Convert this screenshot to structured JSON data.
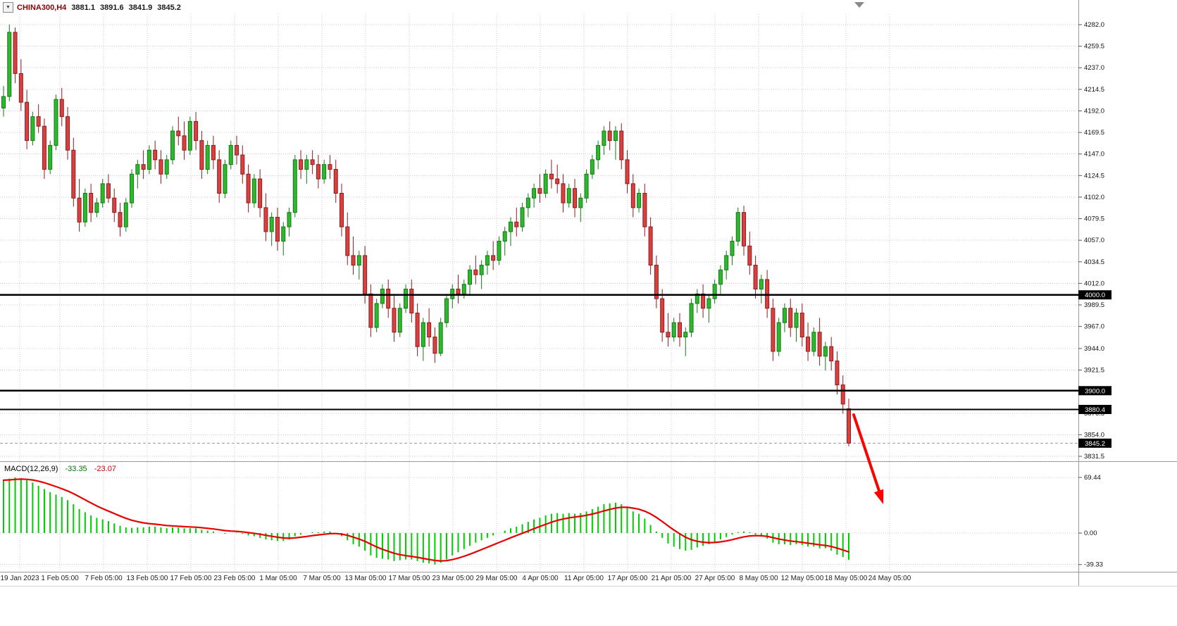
{
  "header": {
    "symbol_timeframe": "CHINA300,H4",
    "open": "3881.1",
    "high": "3891.6",
    "low": "3841.9",
    "close": "3845.2",
    "dropdown_icon": "▼"
  },
  "macd_label": {
    "name": "MACD(12,26,9)",
    "macd_value": "-33.35",
    "signal_value": "-23.07"
  },
  "colors": {
    "bull_fill": "#2db82d",
    "bull_border": "#157a15",
    "bear_fill": "#d94040",
    "bear_border": "#8e1c1c",
    "histogram": "#00cc00",
    "signal": "#e60000",
    "grid": "#c9c9d6",
    "level_line": "#000000",
    "last_price_line": "#9a9a9a",
    "separator": "#9a9a9a",
    "tag_bg": "#000000",
    "tag_text": "#ffffff",
    "axis_text": "#111111",
    "x_label_text": "#222222",
    "arrow": "#ff0000",
    "shift_marker": "#888888"
  },
  "chart_data": {
    "type": "candlestick",
    "title": "CHINA300,H4",
    "symbol": "CHINA300",
    "timeframe": "H4",
    "grid": true,
    "y_axis": {
      "ylim": [
        3831.5,
        4293
      ],
      "ticks": [
        "4282.0",
        "4259.5",
        "4237.0",
        "4214.5",
        "4192.0",
        "4169.5",
        "4147.0",
        "4124.5",
        "4102.0",
        "4079.5",
        "4057.0",
        "4034.5",
        "4012.0",
        "3989.5",
        "3967.0",
        "3944.0",
        "3921.5",
        "3876.5",
        "3854.0",
        "3831.5"
      ],
      "macd_ticks": [
        "69.44",
        "0.00",
        "-39.33"
      ]
    },
    "x_axis": {
      "labels": [
        "19 Jan 2023",
        "1 Feb 05:00",
        "7 Feb 05:00",
        "13 Feb 05:00",
        "17 Feb 05:00",
        "23 Feb 05:00",
        "1 Mar 05:00",
        "7 Mar 05:00",
        "13 Mar 05:00",
        "17 Mar 05:00",
        "23 Mar 05:00",
        "29 Mar 05:00",
        "4 Apr 05:00",
        "11 Apr 05:00",
        "17 Apr 05:00",
        "21 Apr 05:00",
        "27 Apr 05:00",
        "8 May 05:00",
        "12 May 05:00",
        "18 May 05:00",
        "24 May 05:00"
      ]
    },
    "horizontal_lines": [
      {
        "price": 4000.0,
        "label": "4000.0"
      },
      {
        "price": 3900.0,
        "label": "3900.0"
      },
      {
        "price": 3880.4,
        "label": "3880.4"
      }
    ],
    "current_price": {
      "price": 3845.2,
      "label": "3845.2"
    },
    "annotations": [
      {
        "type": "arrow",
        "direction": "down-right",
        "color": "#ff0000"
      }
    ],
    "candles": [
      [
        4195,
        4218,
        4186,
        4207
      ],
      [
        4207,
        4282,
        4202,
        4274
      ],
      [
        4274,
        4279,
        4221,
        4231
      ],
      [
        4231,
        4246,
        4192,
        4201
      ],
      [
        4201,
        4214,
        4152,
        4161
      ],
      [
        4161,
        4191,
        4156,
        4186
      ],
      [
        4186,
        4199,
        4169,
        4176
      ],
      [
        4176,
        4184,
        4121,
        4131
      ],
      [
        4131,
        4161,
        4126,
        4156
      ],
      [
        4156,
        4209,
        4151,
        4204
      ],
      [
        4204,
        4216,
        4176,
        4186
      ],
      [
        4186,
        4196,
        4141,
        4151
      ],
      [
        4151,
        4164,
        4092,
        4101
      ],
      [
        4101,
        4121,
        4066,
        4076
      ],
      [
        4076,
        4111,
        4071,
        4106
      ],
      [
        4106,
        4116,
        4076,
        4086
      ],
      [
        4086,
        4101,
        4081,
        4096
      ],
      [
        4096,
        4121,
        4091,
        4116
      ],
      [
        4116,
        4126,
        4096,
        4101
      ],
      [
        4101,
        4111,
        4076,
        4086
      ],
      [
        4086,
        4096,
        4061,
        4071
      ],
      [
        4071,
        4101,
        4066,
        4096
      ],
      [
        4096,
        4131,
        4091,
        4126
      ],
      [
        4126,
        4141,
        4111,
        4136
      ],
      [
        4136,
        4151,
        4121,
        4131
      ],
      [
        4131,
        4156,
        4126,
        4151
      ],
      [
        4151,
        4161,
        4131,
        4141
      ],
      [
        4141,
        4151,
        4116,
        4126
      ],
      [
        4126,
        4146,
        4121,
        4141
      ],
      [
        4141,
        4176,
        4136,
        4171
      ],
      [
        4171,
        4186,
        4156,
        4166
      ],
      [
        4166,
        4181,
        4141,
        4151
      ],
      [
        4151,
        4186,
        4146,
        4181
      ],
      [
        4181,
        4191,
        4151,
        4161
      ],
      [
        4161,
        4171,
        4121,
        4131
      ],
      [
        4131,
        4161,
        4126,
        4156
      ],
      [
        4156,
        4166,
        4131,
        4141
      ],
      [
        4141,
        4151,
        4096,
        4106
      ],
      [
        4106,
        4141,
        4101,
        4136
      ],
      [
        4136,
        4161,
        4131,
        4156
      ],
      [
        4156,
        4166,
        4136,
        4146
      ],
      [
        4146,
        4156,
        4116,
        4126
      ],
      [
        4126,
        4136,
        4086,
        4096
      ],
      [
        4096,
        4126,
        4091,
        4121
      ],
      [
        4121,
        4131,
        4081,
        4091
      ],
      [
        4091,
        4106,
        4056,
        4066
      ],
      [
        4066,
        4086,
        4051,
        4081
      ],
      [
        4081,
        4091,
        4046,
        4056
      ],
      [
        4056,
        4076,
        4041,
        4071
      ],
      [
        4071,
        4091,
        4061,
        4086
      ],
      [
        4086,
        4146,
        4081,
        4141
      ],
      [
        4141,
        4151,
        4121,
        4131
      ],
      [
        4131,
        4146,
        4116,
        4141
      ],
      [
        4141,
        4151,
        4126,
        4136
      ],
      [
        4136,
        4146,
        4111,
        4121
      ],
      [
        4121,
        4141,
        4116,
        4136
      ],
      [
        4136,
        4146,
        4121,
        4131
      ],
      [
        4131,
        4141,
        4096,
        4106
      ],
      [
        4106,
        4116,
        4061,
        4071
      ],
      [
        4071,
        4086,
        4031,
        4041
      ],
      [
        4041,
        4061,
        4021,
        4031
      ],
      [
        4031,
        4046,
        4016,
        4041
      ],
      [
        4041,
        4051,
        3991,
        4001
      ],
      [
        4001,
        4011,
        3956,
        3966
      ],
      [
        3966,
        3996,
        3961,
        3991
      ],
      [
        3991,
        4011,
        3986,
        4006
      ],
      [
        4006,
        4016,
        3976,
        3986
      ],
      [
        3986,
        4001,
        3951,
        3961
      ],
      [
        3961,
        3991,
        3956,
        3986
      ],
      [
        3986,
        4011,
        3981,
        4006
      ],
      [
        4006,
        4016,
        3971,
        3981
      ],
      [
        3981,
        3991,
        3936,
        3946
      ],
      [
        3946,
        3976,
        3931,
        3971
      ],
      [
        3971,
        3986,
        3946,
        3956
      ],
      [
        3956,
        3966,
        3929,
        3939
      ],
      [
        3939,
        3976,
        3936,
        3971
      ],
      [
        3971,
        4001,
        3966,
        3996
      ],
      [
        3996,
        4011,
        3986,
        4006
      ],
      [
        4006,
        4021,
        3991,
        4001
      ],
      [
        4001,
        4016,
        3996,
        4011
      ],
      [
        4011,
        4031,
        4001,
        4026
      ],
      [
        4026,
        4041,
        4011,
        4021
      ],
      [
        4021,
        4036,
        4006,
        4031
      ],
      [
        4031,
        4046,
        4021,
        4041
      ],
      [
        4041,
        4056,
        4026,
        4036
      ],
      [
        4036,
        4061,
        4031,
        4056
      ],
      [
        4056,
        4071,
        4041,
        4066
      ],
      [
        4066,
        4081,
        4051,
        4076
      ],
      [
        4076,
        4091,
        4061,
        4071
      ],
      [
        4071,
        4096,
        4066,
        4091
      ],
      [
        4091,
        4106,
        4081,
        4101
      ],
      [
        4101,
        4116,
        4091,
        4111
      ],
      [
        4111,
        4126,
        4096,
        4106
      ],
      [
        4106,
        4131,
        4101,
        4126
      ],
      [
        4126,
        4141,
        4111,
        4121
      ],
      [
        4121,
        4136,
        4106,
        4116
      ],
      [
        4116,
        4126,
        4086,
        4096
      ],
      [
        4096,
        4116,
        4091,
        4111
      ],
      [
        4111,
        4121,
        4081,
        4091
      ],
      [
        4091,
        4106,
        4076,
        4101
      ],
      [
        4101,
        4131,
        4096,
        4126
      ],
      [
        4126,
        4146,
        4121,
        4141
      ],
      [
        4141,
        4161,
        4131,
        4156
      ],
      [
        4156,
        4176,
        4146,
        4171
      ],
      [
        4171,
        4181,
        4151,
        4161
      ],
      [
        4161,
        4176,
        4141,
        4171
      ],
      [
        4171,
        4179,
        4131,
        4141
      ],
      [
        4141,
        4151,
        4106,
        4116
      ],
      [
        4116,
        4126,
        4081,
        4091
      ],
      [
        4091,
        4111,
        4086,
        4106
      ],
      [
        4106,
        4116,
        4061,
        4071
      ],
      [
        4071,
        4081,
        4021,
        4031
      ],
      [
        4031,
        4041,
        3986,
        3996
      ],
      [
        3996,
        4006,
        3951,
        3961
      ],
      [
        3961,
        3981,
        3946,
        3956
      ],
      [
        3956,
        3976,
        3951,
        3971
      ],
      [
        3971,
        3981,
        3946,
        3956
      ],
      [
        3956,
        3966,
        3936,
        3961
      ],
      [
        3961,
        3996,
        3956,
        3991
      ],
      [
        3991,
        4006,
        3981,
        4001
      ],
      [
        4001,
        4011,
        3976,
        3986
      ],
      [
        3986,
        4001,
        3971,
        3996
      ],
      [
        3996,
        4016,
        3991,
        4011
      ],
      [
        4011,
        4031,
        4001,
        4026
      ],
      [
        4026,
        4046,
        4016,
        4041
      ],
      [
        4041,
        4061,
        4031,
        4056
      ],
      [
        4056,
        4091,
        4051,
        4086
      ],
      [
        4086,
        4093,
        4041,
        4051
      ],
      [
        4051,
        4066,
        4021,
        4031
      ],
      [
        4031,
        4041,
        3996,
        4006
      ],
      [
        4006,
        4021,
        3991,
        4016
      ],
      [
        4016,
        4026,
        3976,
        3986
      ],
      [
        3986,
        3996,
        3931,
        3941
      ],
      [
        3941,
        3976,
        3936,
        3971
      ],
      [
        3971,
        3991,
        3961,
        3986
      ],
      [
        3986,
        3996,
        3956,
        3966
      ],
      [
        3966,
        3986,
        3951,
        3981
      ],
      [
        3981,
        3991,
        3946,
        3956
      ],
      [
        3956,
        3971,
        3931,
        3941
      ],
      [
        3941,
        3966,
        3936,
        3961
      ],
      [
        3961,
        3976,
        3926,
        3936
      ],
      [
        3936,
        3951,
        3921,
        3946
      ],
      [
        3946,
        3956,
        3921,
        3931
      ],
      [
        3931,
        3941,
        3896,
        3906
      ],
      [
        3906,
        3916,
        3876,
        3886
      ],
      [
        3881.1,
        3891.6,
        3841.9,
        3845.2
      ]
    ],
    "macd": {
      "label": "MACD(12,26,9)",
      "macd_line_value": -33.35,
      "signal_value": -23.07,
      "signal_period": 9,
      "ylim": [
        -48,
        85
      ],
      "histogram": [
        66,
        68,
        69.44,
        68.5,
        66,
        63,
        59,
        55,
        51,
        48,
        45,
        41,
        36,
        30,
        26,
        22,
        19,
        17,
        15,
        12,
        9,
        7,
        6.5,
        7,
        7,
        8,
        8,
        7,
        6,
        7,
        7,
        6,
        6,
        6,
        4,
        3,
        2,
        0,
        -1,
        0,
        0.5,
        -1,
        -3,
        -4,
        -6,
        -8,
        -9,
        -10,
        -10,
        -8,
        -4,
        -2,
        0,
        1,
        1,
        2,
        2,
        0,
        -4,
        -9,
        -14,
        -17,
        -22,
        -28,
        -31,
        -32,
        -33,
        -35,
        -34,
        -33,
        -33,
        -35,
        -37,
        -38,
        -39.33,
        -37,
        -33,
        -28,
        -24,
        -20,
        -16,
        -12,
        -9,
        -6,
        -3,
        0,
        3,
        6,
        8,
        11,
        14,
        17,
        19,
        22,
        24,
        25,
        24,
        25,
        24,
        25,
        27,
        30,
        33,
        36,
        37,
        38,
        36,
        32,
        27,
        24,
        18,
        10,
        2,
        -6,
        -13,
        -17,
        -20,
        -22,
        -21,
        -18,
        -16,
        -14,
        -11,
        -8,
        -5,
        -2,
        1,
        2,
        1,
        -2,
        -4,
        -7,
        -12,
        -14,
        -14,
        -15,
        -14,
        -15,
        -17,
        -17,
        -19,
        -19,
        -22,
        -27,
        -30,
        -33.35
      ]
    }
  }
}
